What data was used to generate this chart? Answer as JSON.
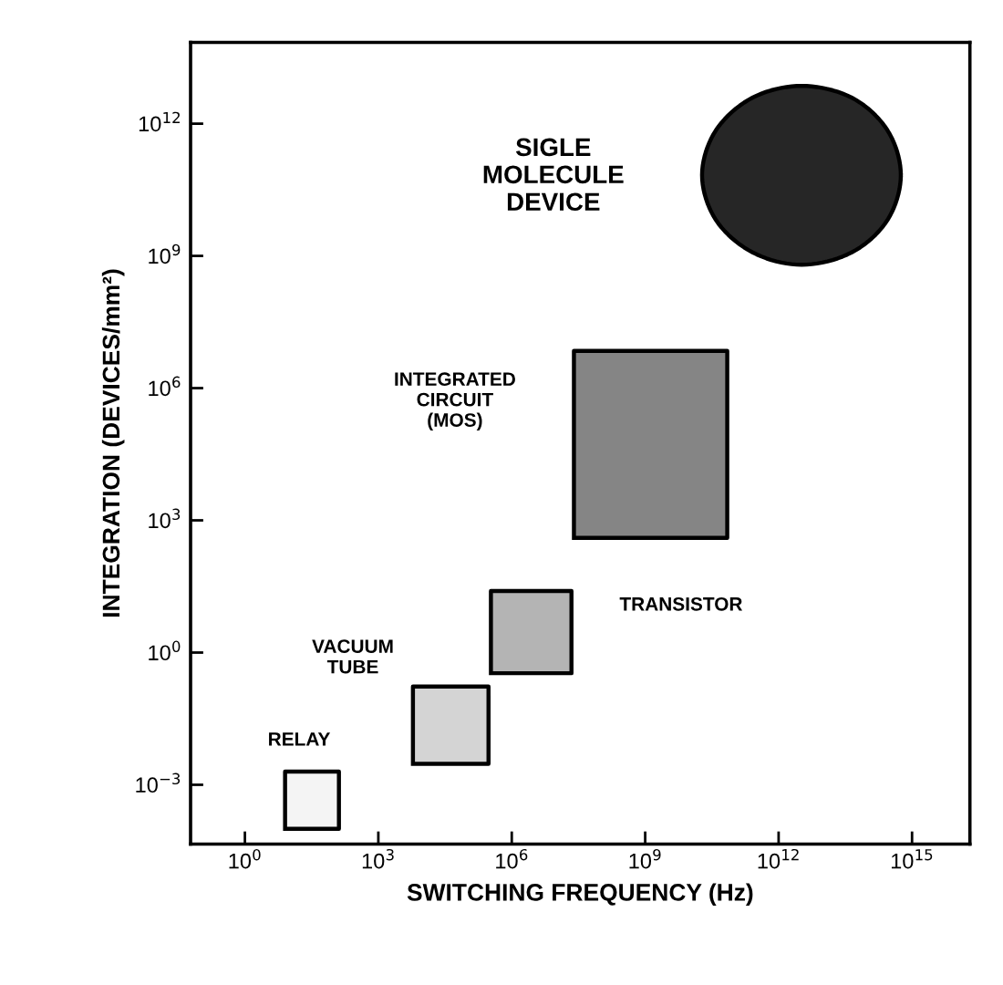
{
  "chart_data": {
    "type": "area",
    "xlabel": "SWITCHING FREQUENCY (Hz)",
    "ylabel": "INTEGRATION (DEVICES/mm²)",
    "log": "xy",
    "grid": false,
    "legend": false,
    "marker": "none",
    "xlim": [
      0.06,
      2e+16
    ],
    "ylim": [
      4.5e-05,
      70000000000000.0
    ],
    "xticks": [
      {
        "value": 1,
        "label": "10$^{0}$"
      },
      {
        "value": 1000,
        "label": "10$^{3}$"
      },
      {
        "value": 1000000,
        "label": "10$^{6}$"
      },
      {
        "value": 1000000000,
        "label": "10$^{9}$"
      },
      {
        "value": 1000000000000,
        "label": "10$^{12}$"
      },
      {
        "value": 1000000000000000,
        "label": "10$^{15}$"
      }
    ],
    "yticks": [
      {
        "value": 0.001,
        "label": "10$^{−3}$"
      },
      {
        "value": 1,
        "label": "10$^{0}$"
      },
      {
        "value": 1000,
        "label": "10$^{3}$"
      },
      {
        "value": 1000000,
        "label": "10$^{6}$"
      },
      {
        "value": 1000000000,
        "label": "10$^{9}$"
      },
      {
        "value": 1000000000000,
        "label": "10$^{12}$"
      }
    ],
    "series": [
      {
        "color": "#f4f4f4",
        "x": [
          8,
          130,
          130,
          8,
          8
        ],
        "values": [
          0.0001,
          0.0001,
          0.002,
          0.002,
          0.0001
        ]
      },
      {
        "color": "#d4d4d4",
        "x": [
          6000,
          300000,
          300000,
          6000,
          6000
        ],
        "values": [
          0.003,
          0.003,
          0.17,
          0.17,
          0.003
        ]
      },
      {
        "color": "#b4b4b4",
        "x": [
          340000,
          22000000,
          22000000,
          340000,
          340000
        ],
        "values": [
          0.34,
          0.34,
          25,
          25,
          0.34
        ]
      },
      {
        "color": "#858585",
        "x": [
          25000000,
          70000000000,
          70000000000,
          25000000,
          25000000
        ],
        "values": [
          400,
          400,
          7000000,
          7000000,
          400
        ]
      },
      {
        "color": "#262626",
        "x": [
          560000000000000,
          280000000000000,
          44000000000000,
          3300000000000,
          260000000000,
          39000000000,
          19000000000,
          39000000000,
          260000000000,
          3300000000000,
          44000000000000,
          280000000000000,
          560000000000000
        ],
        "values": [
          68000000000,
          710000000000,
          3900000000000,
          7200000000000,
          3900000000000,
          710000000000,
          68000000000,
          6500000000,
          1200000000,
          630000000,
          1200000000,
          6500000000,
          68000000000
        ]
      }
    ],
    "annotations": [
      "RELAY",
      "VACUUM\nTUBE",
      "TRANSISTOR",
      "INTEGRATED\nCIRCUIT\n(MOS)",
      "SIGLE\nMOLECULE\nDEVICE"
    ]
  }
}
